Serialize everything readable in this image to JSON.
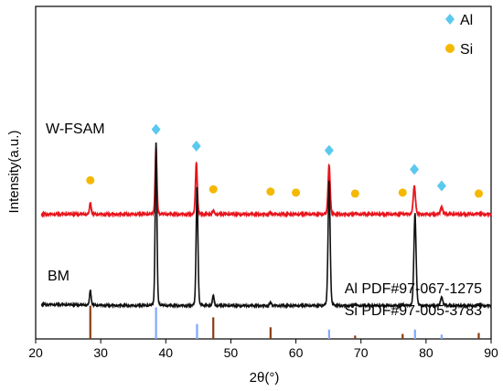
{
  "chart_data": {
    "type": "line",
    "xlabel": "2θ(°)",
    "ylabel": "Intensity(a.u.)",
    "xlim": [
      20,
      90
    ],
    "x_ticks": [
      20,
      30,
      40,
      50,
      60,
      70,
      80,
      90
    ],
    "y_ticks": "none",
    "grid": false,
    "legend": {
      "position": "top-right",
      "entries": [
        {
          "label": "Al",
          "marker": "diamond",
          "color": "#5bc8ee"
        },
        {
          "label": "Si",
          "marker": "circle",
          "color": "#f5b800"
        }
      ]
    },
    "series": [
      {
        "name": "W-FSAM",
        "color": "#e8141c",
        "baseline_level": 0.125,
        "peaks": [
          {
            "x": 28.4,
            "h": 0.035
          },
          {
            "x": 38.5,
            "h": 0.2
          },
          {
            "x": 44.7,
            "h": 0.155
          },
          {
            "x": 47.3,
            "h": 0.01
          },
          {
            "x": 56.1,
            "h": 0.005
          },
          {
            "x": 65.1,
            "h": 0.148
          },
          {
            "x": 69.1,
            "h": 0.003
          },
          {
            "x": 76.4,
            "h": 0.003
          },
          {
            "x": 78.2,
            "h": 0.085
          },
          {
            "x": 82.4,
            "h": 0.02
          },
          {
            "x": 88.1,
            "h": 0.003
          }
        ],
        "markers": [
          {
            "x": 28.4,
            "phase": "Si",
            "level": 0.227
          },
          {
            "x": 38.5,
            "phase": "Al",
            "level": 0.38
          },
          {
            "x": 44.7,
            "phase": "Al",
            "level": 0.33
          },
          {
            "x": 47.3,
            "phase": "Si",
            "level": 0.2
          },
          {
            "x": 56.1,
            "phase": "Si",
            "level": 0.193
          },
          {
            "x": 60.0,
            "phase": "Si",
            "level": 0.19
          },
          {
            "x": 65.1,
            "phase": "Al",
            "level": 0.317
          },
          {
            "x": 69.1,
            "phase": "Si",
            "level": 0.187
          },
          {
            "x": 76.4,
            "phase": "Si",
            "level": 0.19
          },
          {
            "x": 78.2,
            "phase": "Al",
            "level": 0.26
          },
          {
            "x": 82.4,
            "phase": "Al",
            "level": 0.21
          },
          {
            "x": 88.1,
            "phase": "Si",
            "level": 0.187
          }
        ]
      },
      {
        "name": "BM",
        "color": "#111111",
        "baseline_level": -0.15,
        "peaks": [
          {
            "x": 28.4,
            "h": 0.045
          },
          {
            "x": 38.5,
            "h": 0.49
          },
          {
            "x": 44.8,
            "h": 0.357
          },
          {
            "x": 47.3,
            "h": 0.03
          },
          {
            "x": 56.1,
            "h": 0.01
          },
          {
            "x": 65.1,
            "h": 0.377
          },
          {
            "x": 69.1,
            "h": 0.005
          },
          {
            "x": 76.4,
            "h": 0.005
          },
          {
            "x": 78.3,
            "h": 0.277
          },
          {
            "x": 82.4,
            "h": 0.025
          },
          {
            "x": 88.1,
            "h": 0.005
          }
        ]
      }
    ],
    "reference_patterns": [
      {
        "label": "Al PDF#97-067-1275",
        "color": "#7fa7ff",
        "lines": [
          {
            "x": 38.5,
            "h": 0.095
          },
          {
            "x": 44.8,
            "h": 0.045
          },
          {
            "x": 65.1,
            "h": 0.028
          },
          {
            "x": 78.3,
            "h": 0.028
          },
          {
            "x": 82.4,
            "h": 0.013
          }
        ]
      },
      {
        "label": "Si PDF#97-005-3783",
        "color": "#8b3a14",
        "lines": [
          {
            "x": 28.4,
            "h": 0.1
          },
          {
            "x": 47.3,
            "h": 0.065
          },
          {
            "x": 56.1,
            "h": 0.035
          },
          {
            "x": 69.1,
            "h": 0.01
          },
          {
            "x": 76.4,
            "h": 0.015
          },
          {
            "x": 88.1,
            "h": 0.018
          }
        ]
      }
    ]
  }
}
